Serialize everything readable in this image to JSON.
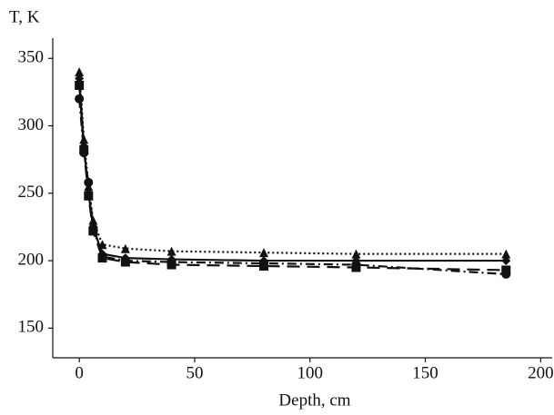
{
  "chart_data": {
    "type": "line",
    "y_label": "T, K",
    "x_label": "Depth, cm",
    "x": [
      0,
      2,
      4,
      6,
      10,
      20,
      40,
      80,
      120,
      185
    ],
    "series": [
      {
        "color": "#111111",
        "dash": "2,3",
        "marker": "triangle",
        "values": [
          340,
          290,
          255,
          230,
          212,
          209,
          207,
          206,
          205,
          205
        ]
      },
      {
        "color": "#111111",
        "dash": "",
        "marker": "diamond",
        "values": [
          335,
          285,
          250,
          225,
          205,
          202,
          201,
          200,
          200,
          200
        ]
      },
      {
        "color": "#111111",
        "dash": "14,8",
        "marker": "square",
        "values": [
          330,
          282,
          248,
          222,
          202,
          199,
          197,
          196,
          195,
          193
        ]
      },
      {
        "color": "#111111",
        "dash": "10,4,2,4",
        "marker": "circle",
        "values": [
          320,
          280,
          258,
          224,
          203,
          200,
          199,
          198,
          197,
          190
        ]
      }
    ],
    "xlim": [
      -11.5,
      205
    ],
    "xticks": [
      0,
      50,
      100,
      150,
      200
    ],
    "ylim": [
      128,
      365
    ],
    "yticks": [
      150,
      200,
      250,
      300,
      350
    ],
    "grid": false
  }
}
